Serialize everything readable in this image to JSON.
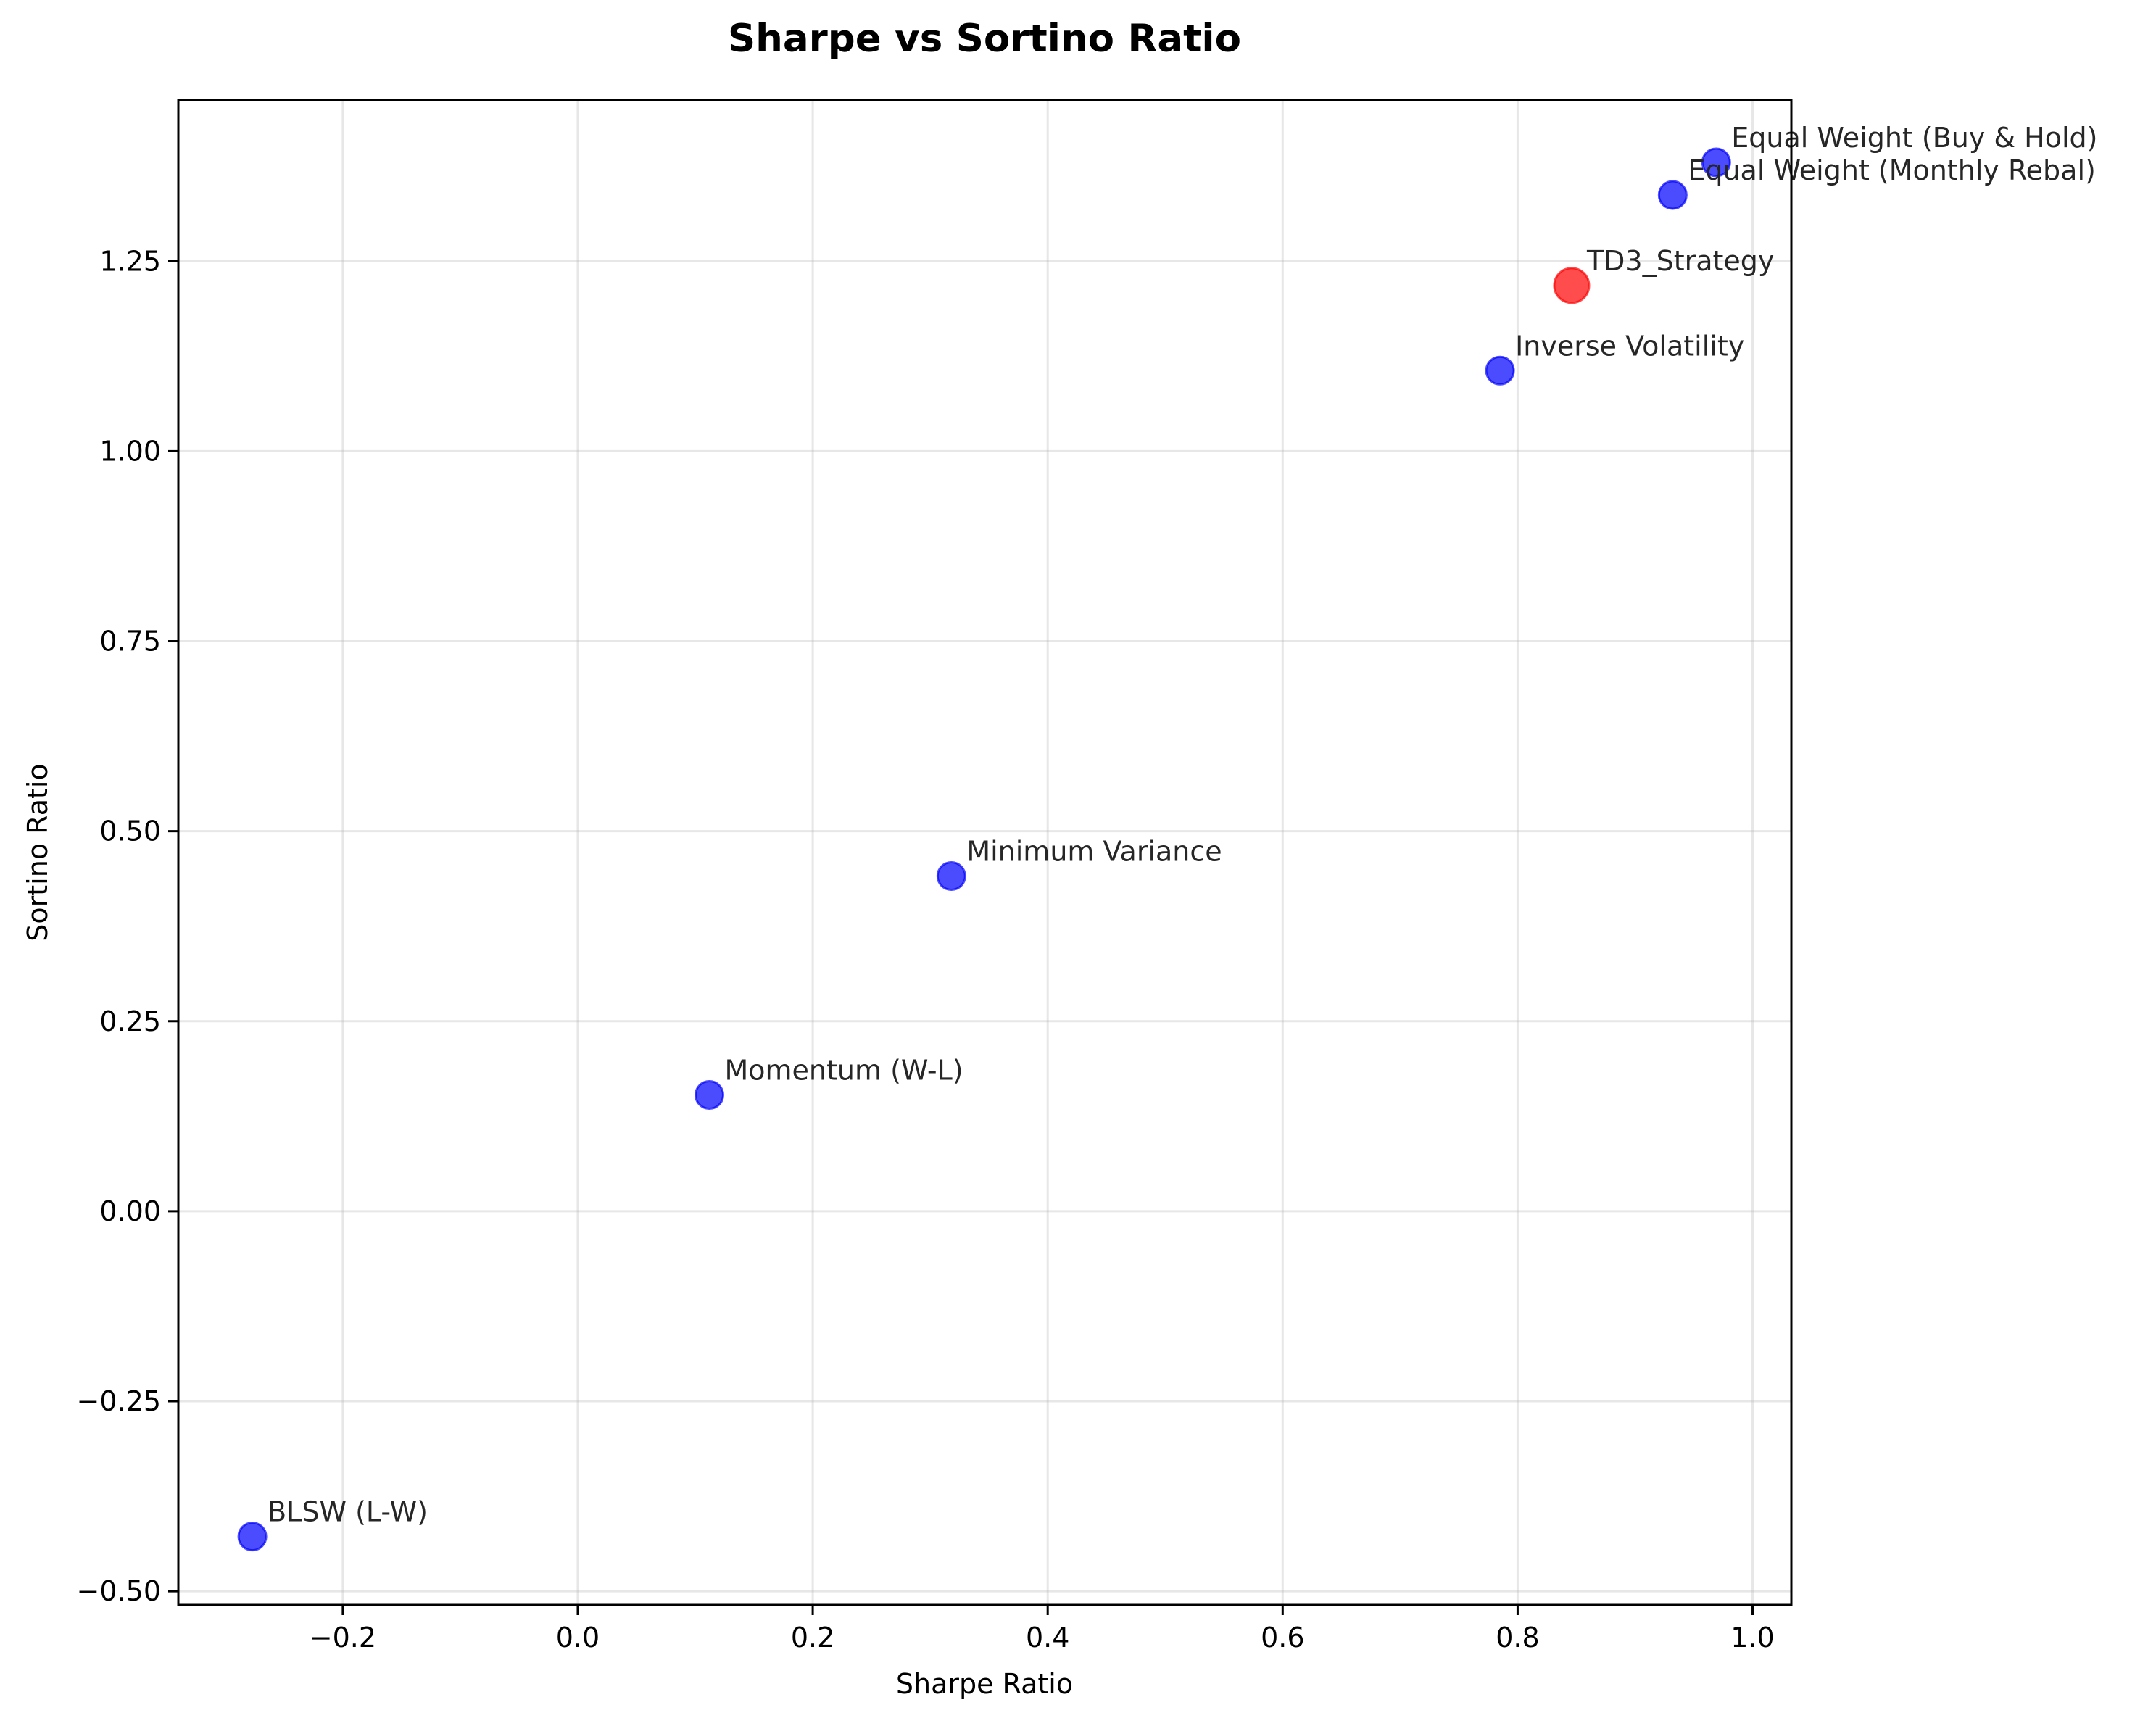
{
  "chart_data": {
    "type": "scatter",
    "title": "Sharpe vs Sortino Ratio",
    "xlabel": "Sharpe Ratio",
    "ylabel": "Sortino Ratio",
    "xlim": [
      -0.34,
      1.033
    ],
    "ylim": [
      -0.518,
      1.462
    ],
    "xticks": [
      -0.2,
      0.0,
      0.2,
      0.4,
      0.6,
      0.8,
      1.0
    ],
    "xtick_labels": [
      "−0.2",
      "0.0",
      "0.2",
      "0.4",
      "0.6",
      "0.8",
      "1.0"
    ],
    "yticks": [
      -0.5,
      -0.25,
      0.0,
      0.25,
      0.5,
      0.75,
      1.0,
      1.25
    ],
    "ytick_labels": [
      "−0.50",
      "−0.25",
      "0.00",
      "0.25",
      "0.50",
      "0.75",
      "1.00",
      "1.25"
    ],
    "grid": true,
    "points": [
      {
        "label": "Equal Weight (Buy & Hold)",
        "x": 0.969,
        "y": 1.38,
        "color": "#0000ff",
        "highlight": false
      },
      {
        "label": "Equal Weight (Monthly Rebal)",
        "x": 0.932,
        "y": 1.337,
        "color": "#0000ff",
        "highlight": false
      },
      {
        "label": "TD3_Strategy",
        "x": 0.846,
        "y": 1.218,
        "color": "#ff0000",
        "highlight": true
      },
      {
        "label": "Inverse Volatility",
        "x": 0.785,
        "y": 1.106,
        "color": "#0000ff",
        "highlight": false
      },
      {
        "label": "Minimum Variance",
        "x": 0.318,
        "y": 0.441,
        "color": "#0000ff",
        "highlight": false
      },
      {
        "label": "Momentum (W-L)",
        "x": 0.112,
        "y": 0.153,
        "color": "#0000ff",
        "highlight": false
      },
      {
        "label": "BLSW (L-W)",
        "x": -0.277,
        "y": -0.428,
        "color": "#0000ff",
        "highlight": false
      }
    ]
  }
}
